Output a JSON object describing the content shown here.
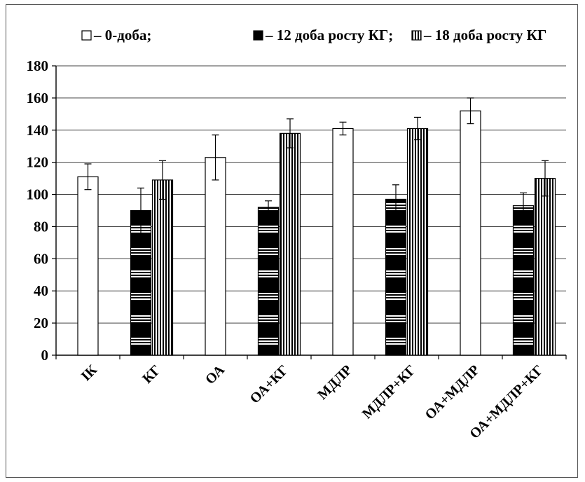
{
  "chart_data": {
    "type": "bar",
    "categories": [
      "ІК",
      "КГ",
      "ОА",
      "ОА+КГ",
      "МДЛР",
      "МДЛР+КГ",
      "ОА+МДЛР",
      "ОА+МДЛР+КГ"
    ],
    "series": [
      {
        "name": "– 0-доба;",
        "values": [
          111,
          null,
          123,
          null,
          141,
          null,
          152,
          null
        ],
        "errors": [
          8,
          null,
          14,
          null,
          4,
          null,
          8,
          null
        ]
      },
      {
        "name": "– 12 доба росту КГ;",
        "values": [
          null,
          90,
          null,
          92,
          null,
          97,
          null,
          93
        ],
        "errors": [
          null,
          14,
          null,
          4,
          null,
          9,
          null,
          8
        ]
      },
      {
        "name": "– 18 доба росту КГ",
        "values": [
          null,
          109,
          null,
          138,
          null,
          141,
          null,
          110
        ],
        "errors": [
          null,
          12,
          null,
          9,
          null,
          7,
          null,
          11
        ]
      }
    ],
    "ylim": [
      0,
      180
    ],
    "yticks": [
      "0",
      "20",
      "40",
      "60",
      "80",
      "100",
      "120",
      "140",
      "160",
      "180"
    ],
    "grid": true,
    "legend_position": "top"
  }
}
